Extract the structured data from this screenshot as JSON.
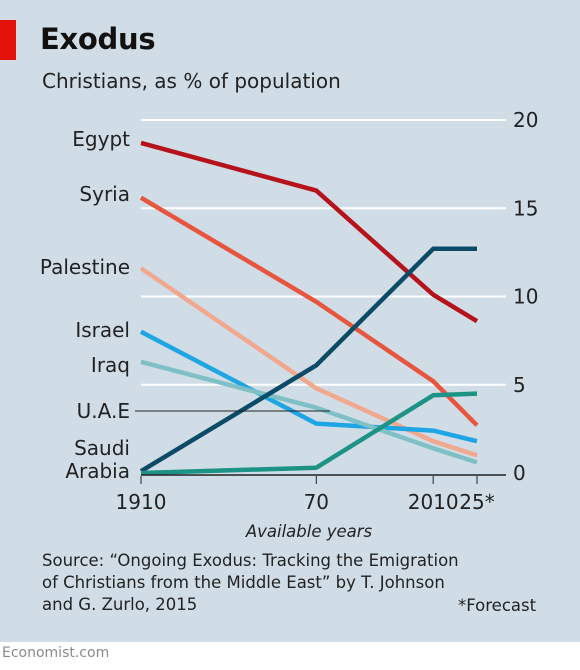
{
  "header": {
    "title": "Exodus",
    "subtitle": "Christians, as % of population"
  },
  "footer": {
    "source": "Source: “Ongoing Exodus: Tracking the Emigration\nof Christians from the Middle East” by T. Johnson\nand G. Zurlo, 2015",
    "footnote": "*Forecast",
    "brand": "Economist.com"
  },
  "colors": {
    "background": "#d0dde6",
    "brand_red": "#e3120b"
  },
  "chart_data": {
    "type": "line",
    "title": "Exodus",
    "subtitle": "Christians, as % of population",
    "x": [
      1910,
      1970,
      2010,
      2025
    ],
    "x_tick_labels": [
      "1910",
      "70",
      "2010",
      "25*"
    ],
    "xlabel": "Available years",
    "ylabel": "",
    "ylim": [
      0,
      20
    ],
    "y_ticks": [
      0,
      5,
      10,
      15,
      20
    ],
    "y_axis_position": "right",
    "grid": true,
    "legend": "direct labels on left",
    "series": [
      {
        "name": "Egypt",
        "values": [
          18.7,
          16.0,
          10.1,
          8.6
        ],
        "color": "#b5121b"
      },
      {
        "name": "Syria",
        "values": [
          15.6,
          9.7,
          5.2,
          2.7
        ],
        "color": "#e8553f"
      },
      {
        "name": "Palestine",
        "values": [
          11.6,
          4.8,
          1.8,
          1.0
        ],
        "color": "#f0a88e"
      },
      {
        "name": "Israel",
        "values": [
          8.0,
          2.8,
          2.4,
          1.8
        ],
        "color": "#1ea5e3"
      },
      {
        "name": "Iraq",
        "values": [
          6.3,
          3.7,
          1.4,
          0.6
        ],
        "color": "#7fc0c6"
      },
      {
        "name": "U.A.E",
        "values": [
          0.1,
          6.1,
          12.7,
          12.7
        ],
        "color": "#0b4b68"
      },
      {
        "name": "Saudi Arabia",
        "values": [
          0.0,
          0.3,
          4.4,
          4.5
        ],
        "color": "#1c9384"
      }
    ]
  }
}
